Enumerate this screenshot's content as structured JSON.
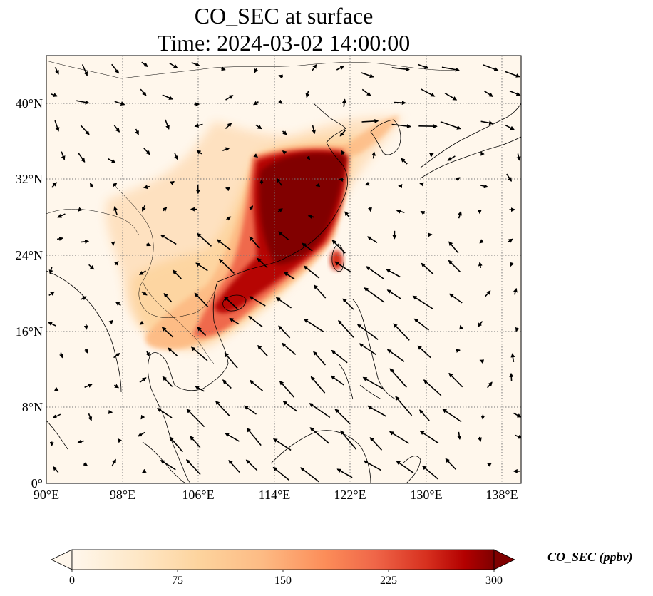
{
  "title": {
    "line1": "CO_SEC at surface",
    "line2": "Time: 2024-03-02 14:00:00"
  },
  "map": {
    "projection": "PlateCarree",
    "lon_range": [
      90,
      140
    ],
    "lat_range": [
      0,
      45
    ],
    "gridlines": true,
    "coastlines": true,
    "wind_vectors": true,
    "lat_ticks": [
      {
        "value": 0,
        "label": "0°"
      },
      {
        "value": 8,
        "label": "8°N"
      },
      {
        "value": 16,
        "label": "16°N"
      },
      {
        "value": 24,
        "label": "24°N"
      },
      {
        "value": 32,
        "label": "32°N"
      },
      {
        "value": 40,
        "label": "40°N"
      }
    ],
    "lon_ticks": [
      {
        "value": 90,
        "label": "90°E"
      },
      {
        "value": 98,
        "label": "98°E"
      },
      {
        "value": 106,
        "label": "106°E"
      },
      {
        "value": 114,
        "label": "114°E"
      },
      {
        "value": 122,
        "label": "122°E"
      },
      {
        "value": 130,
        "label": "130°E"
      },
      {
        "value": 138,
        "label": "138°E"
      }
    ]
  },
  "colorbar": {
    "label": "CO_SEC (ppbv)",
    "range": [
      0,
      300
    ],
    "extend": "both",
    "colormap": "OrRd",
    "ticks": [
      "0",
      "75",
      "150",
      "225",
      "300"
    ],
    "colors": {
      "low": "#fff7ec",
      "light": "#fdd49e",
      "mid": "#fc8d59",
      "high": "#d7301f",
      "max": "#7f0000"
    }
  }
}
